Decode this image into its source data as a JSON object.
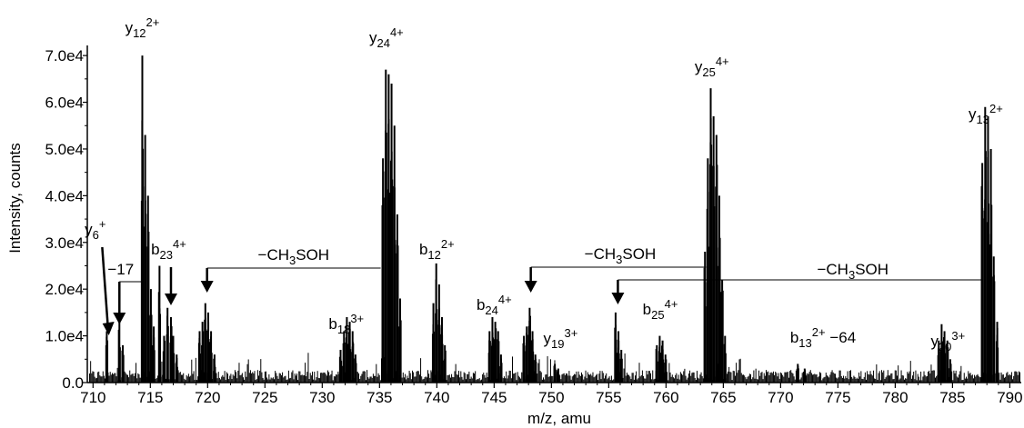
{
  "chart_data": {
    "type": "bar",
    "xlabel": "m/z, amu",
    "ylabel": "Intensity, counts",
    "xlim": [
      709.5,
      791
    ],
    "ylim": [
      0,
      71000
    ],
    "xticks": [
      {
        "value": 710,
        "label": "710"
      },
      {
        "value": 715,
        "label": "715"
      },
      {
        "value": 720,
        "label": "720"
      },
      {
        "value": 725,
        "label": "725"
      },
      {
        "value": 730,
        "label": "730"
      },
      {
        "value": 735,
        "label": "735"
      },
      {
        "value": 740,
        "label": "740"
      },
      {
        "value": 745,
        "label": "745"
      },
      {
        "value": 750,
        "label": "750"
      },
      {
        "value": 755,
        "label": "755"
      },
      {
        "value": 760,
        "label": "760"
      },
      {
        "value": 765,
        "label": "765"
      },
      {
        "value": 770,
        "label": "770"
      },
      {
        "value": 775,
        "label": "775"
      },
      {
        "value": 780,
        "label": "780"
      },
      {
        "value": 785,
        "label": "785"
      },
      {
        "value": 790,
        "label": "790"
      }
    ],
    "yticks": [
      {
        "value": 0,
        "label": "0.0"
      },
      {
        "value": 10000,
        "label": "1.0e4"
      },
      {
        "value": 20000,
        "label": "2.0e4"
      },
      {
        "value": 30000,
        "label": "3.0e4"
      },
      {
        "value": 40000,
        "label": "4.0e4"
      },
      {
        "value": 50000,
        "label": "5.0e4"
      },
      {
        "value": 60000,
        "label": "6.0e4"
      },
      {
        "value": 70000,
        "label": "7.0e4"
      }
    ],
    "peaks": [
      [
        711.2,
        11000
      ],
      [
        712.3,
        13500
      ],
      [
        712.6,
        8000
      ],
      [
        714.3,
        70000
      ],
      [
        714.55,
        53000
      ],
      [
        714.8,
        40000
      ],
      [
        715.05,
        20000
      ],
      [
        715.3,
        12000
      ],
      [
        715.8,
        25000
      ],
      [
        716.2,
        10000
      ],
      [
        716.5,
        16000
      ],
      [
        716.8,
        14000
      ],
      [
        717.0,
        10000
      ],
      [
        717.3,
        6000
      ],
      [
        719.3,
        11000
      ],
      [
        719.55,
        13000
      ],
      [
        719.8,
        17000
      ],
      [
        720.05,
        15000
      ],
      [
        720.3,
        11000
      ],
      [
        720.6,
        6000
      ],
      [
        731.6,
        7000
      ],
      [
        731.9,
        11000
      ],
      [
        732.15,
        14000
      ],
      [
        732.4,
        13000
      ],
      [
        732.65,
        11000
      ],
      [
        732.9,
        6000
      ],
      [
        735.3,
        48000
      ],
      [
        735.55,
        67000
      ],
      [
        735.8,
        66000
      ],
      [
        736.05,
        64000
      ],
      [
        736.3,
        55000
      ],
      [
        736.55,
        36000
      ],
      [
        736.8,
        18000
      ],
      [
        739.7,
        17000
      ],
      [
        739.95,
        25500
      ],
      [
        740.2,
        21000
      ],
      [
        740.45,
        14000
      ],
      [
        740.7,
        8000
      ],
      [
        744.6,
        11000
      ],
      [
        744.85,
        14000
      ],
      [
        745.1,
        13000
      ],
      [
        745.35,
        11000
      ],
      [
        745.6,
        6000
      ],
      [
        747.6,
        10000
      ],
      [
        747.85,
        12000
      ],
      [
        748.1,
        16000
      ],
      [
        748.35,
        11000
      ],
      [
        748.6,
        6000
      ],
      [
        750.3,
        4000
      ],
      [
        750.6,
        3000
      ],
      [
        755.6,
        15000
      ],
      [
        755.85,
        11000
      ],
      [
        756.1,
        7000
      ],
      [
        759.2,
        8000
      ],
      [
        759.45,
        10000
      ],
      [
        759.7,
        9000
      ],
      [
        759.95,
        6000
      ],
      [
        763.4,
        28000
      ],
      [
        763.65,
        48000
      ],
      [
        763.9,
        63000
      ],
      [
        764.15,
        57000
      ],
      [
        764.4,
        53000
      ],
      [
        764.65,
        40000
      ],
      [
        764.9,
        22000
      ],
      [
        765.15,
        10000
      ],
      [
        771.5,
        4000
      ],
      [
        772.1,
        3000
      ],
      [
        783.8,
        9000
      ],
      [
        784.05,
        12500
      ],
      [
        784.3,
        11000
      ],
      [
        784.55,
        9000
      ],
      [
        784.8,
        5000
      ],
      [
        787.6,
        47000
      ],
      [
        787.85,
        59000
      ],
      [
        788.1,
        57000
      ],
      [
        788.35,
        50000
      ],
      [
        788.6,
        27000
      ],
      [
        788.9,
        13000
      ]
    ],
    "ions": [
      {
        "base": "y",
        "sub": "12",
        "sup": "2+",
        "x": 714.3
      },
      {
        "base": "y",
        "sub": "24",
        "sup": "4+",
        "x": 735.6
      },
      {
        "base": "y",
        "sub": "25",
        "sup": "4+",
        "x": 764.0
      },
      {
        "base": "y",
        "sub": "13",
        "sup": "2+",
        "x": 787.9
      },
      {
        "base": "y",
        "sub": "6",
        "sup": "+",
        "x": 710.2
      },
      {
        "base": "b",
        "sub": "23",
        "sup": "4+",
        "x": 716.6
      },
      {
        "base": "b",
        "sub": "12",
        "sup": "2+",
        "x": 740.0
      },
      {
        "base": "b",
        "sub": "18",
        "sup": "3+",
        "x": 732.1
      },
      {
        "base": "b",
        "sub": "24",
        "sup": "4+",
        "x": 745.0
      },
      {
        "base": "y",
        "sub": "19",
        "sup": "3+",
        "x": 750.8
      },
      {
        "base": "b",
        "sub": "25",
        "sup": "4+",
        "x": 759.5
      },
      {
        "base": "b",
        "sub": "13",
        "sup": "2+",
        "suffix": " −64",
        "x": 773.7
      },
      {
        "base": "y",
        "sub": "20",
        "sup": "3+",
        "x": 784.6
      }
    ],
    "annotations": {
      "loss17": "−17",
      "loss_ch3soh": "−CH3SOH"
    }
  }
}
